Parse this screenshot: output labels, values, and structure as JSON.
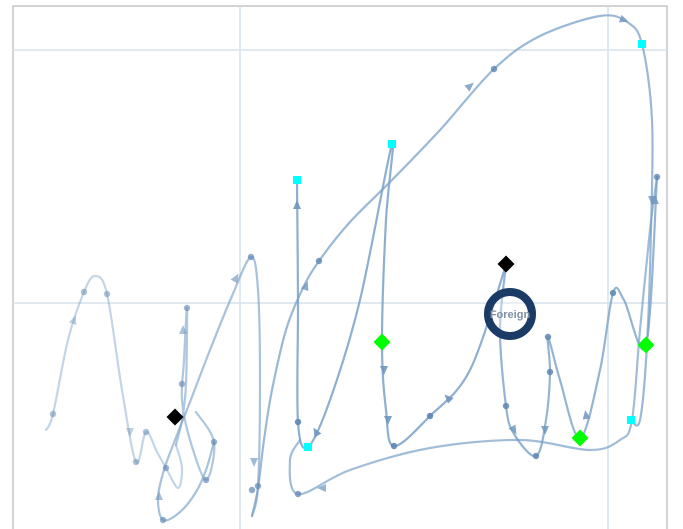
{
  "colors": {
    "background": "#ffffff",
    "frame_border": "#a9a9a9",
    "gridline": "#d6e2ea",
    "trail": "#7aa1c8",
    "trail_faint": "#bcd2e6",
    "arrowhead": "#6f96bf",
    "vertex_dot": "#5d86b2",
    "square_marker": "#00ffff",
    "diamond_black": "#000000",
    "diamond_green": "#00ff00",
    "focus_ring": "#1b3b67",
    "focus_label": "#7f8fa3"
  },
  "focus_node": {
    "label": "Foreign"
  },
  "legend": {
    "square_icon": "square-marker-icon",
    "diamond_icon": "diamond-marker-icon",
    "ring_icon": "ring-marker-icon"
  }
}
